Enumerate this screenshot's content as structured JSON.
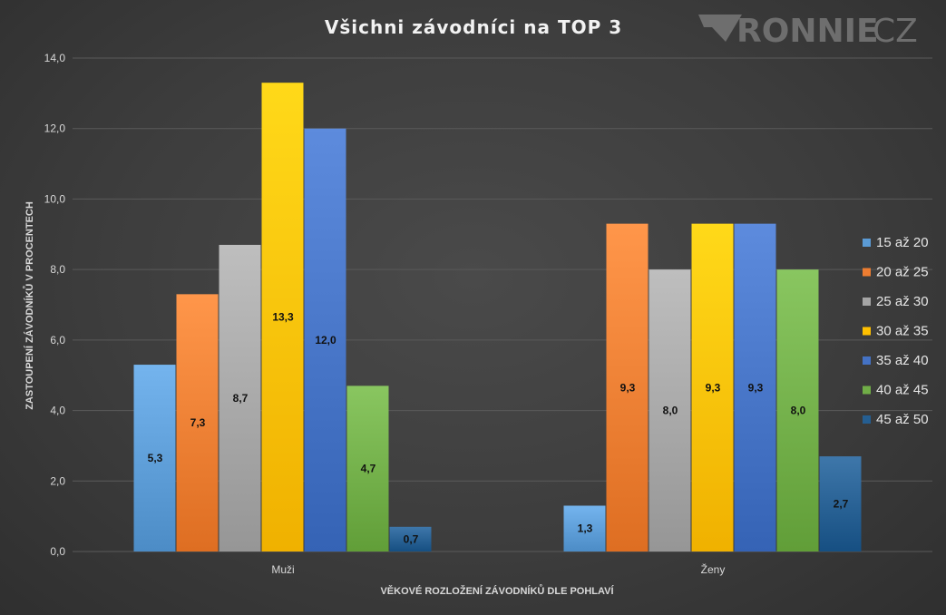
{
  "logo": {
    "brand_bold": "RONNIE",
    "brand_thin": "CZ"
  },
  "chart_data": {
    "type": "bar",
    "title": "Všichni závodníci na TOP 3",
    "xlabel": "VĚKOVÉ ROZLOŽENÍ ZÁVODNÍKŮ DLE POHLAVÍ",
    "ylabel": "ZASTOUPENÍ ZÁVODNÍKŮ V PROCENTECH",
    "categories": [
      "Muži",
      "Ženy"
    ],
    "ylim": [
      0,
      14
    ],
    "yticks": [
      "0,0",
      "2,0",
      "4,0",
      "6,0",
      "8,0",
      "10,0",
      "12,0",
      "14,0"
    ],
    "grid": true,
    "legend_position": "right",
    "series": [
      {
        "name": "15 až 20",
        "color": "#5b9bd5",
        "values": [
          5.3,
          1.3
        ],
        "labels": [
          "5,3",
          "1,3"
        ]
      },
      {
        "name": "20 až 25",
        "color": "#ed7d31",
        "values": [
          7.3,
          9.3
        ],
        "labels": [
          "7,3",
          "9,3"
        ]
      },
      {
        "name": "25 až 30",
        "color": "#a5a5a5",
        "values": [
          8.7,
          8.0
        ],
        "labels": [
          "8,7",
          "8,0"
        ]
      },
      {
        "name": "30 až 35",
        "color": "#ffc000",
        "values": [
          13.3,
          9.3
        ],
        "labels": [
          "13,3",
          "9,3"
        ]
      },
      {
        "name": "35 až 40",
        "color": "#4472c4",
        "values": [
          12.0,
          9.3
        ],
        "labels": [
          "12,0",
          "9,3"
        ]
      },
      {
        "name": "40 až 45",
        "color": "#70ad47",
        "values": [
          4.7,
          8.0
        ],
        "labels": [
          "4,7",
          "8,0"
        ]
      },
      {
        "name": "45 až 50",
        "color": "#255e91",
        "values": [
          0.7,
          2.7
        ],
        "labels": [
          "0,7",
          "2,7"
        ]
      }
    ]
  }
}
